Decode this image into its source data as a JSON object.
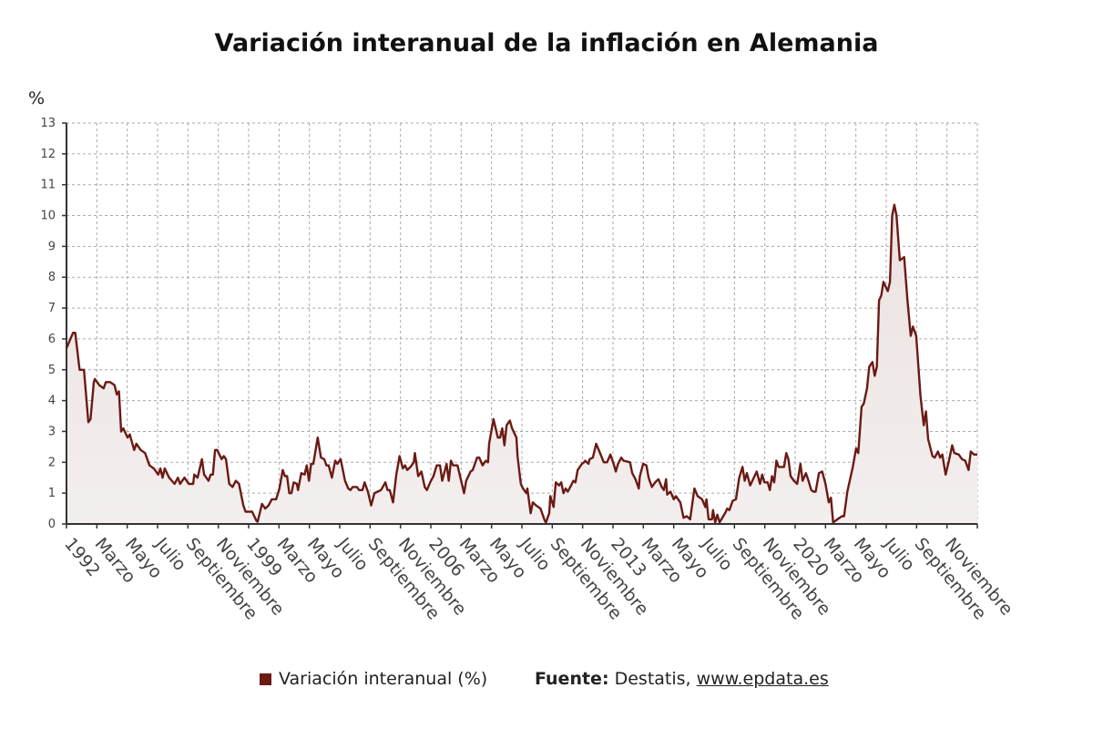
{
  "chart_data": {
    "type": "area",
    "title": "Variación interanual de la inflación en Alemania",
    "ylabel": "%",
    "xlabel": "",
    "ylim": [
      0,
      13
    ],
    "yticks": [
      0,
      1,
      2,
      3,
      4,
      5,
      6,
      7,
      8,
      9,
      10,
      11,
      12,
      13
    ],
    "xlim": [
      0,
      417
    ],
    "x_unit": "months since January 1992 (approximate)",
    "grid": true,
    "legend_position": "bottom",
    "xtick_labels": [
      "1992",
      "Marzo",
      "Mayo",
      "Julio",
      "Septiembre",
      "Noviembre",
      "1999",
      "Marzo",
      "Mayo",
      "Julio",
      "Septiembre",
      "Noviembre",
      "2006",
      "Marzo",
      "Mayo",
      "Julio",
      "Septiembre",
      "Noviembre",
      "2013",
      "Marzo",
      "Mayo",
      "Julio",
      "Septiembre",
      "Noviembre",
      "2020",
      "Marzo",
      "Mayo",
      "Julio",
      "Septiembre",
      "Noviembre"
    ],
    "series": [
      {
        "name": "Variación interanual (%)",
        "color": "#6b1a14",
        "fill": "#efe9e7",
        "points": [
          [
            0,
            5.7
          ],
          [
            3,
            6.2
          ],
          [
            4,
            6.2
          ],
          [
            6,
            5.0
          ],
          [
            8,
            5.0
          ],
          [
            10,
            3.3
          ],
          [
            11,
            3.4
          ],
          [
            12.5,
            4.6
          ],
          [
            13,
            4.7
          ],
          [
            15,
            4.5
          ],
          [
            17,
            4.4
          ],
          [
            18,
            4.6
          ],
          [
            20,
            4.6
          ],
          [
            22,
            4.5
          ],
          [
            23,
            4.2
          ],
          [
            24,
            4.3
          ],
          [
            25,
            3.0
          ],
          [
            26,
            3.1
          ],
          [
            28,
            2.8
          ],
          [
            29,
            2.9
          ],
          [
            31,
            2.4
          ],
          [
            32,
            2.6
          ],
          [
            34,
            2.4
          ],
          [
            36,
            2.3
          ],
          [
            38,
            1.9
          ],
          [
            40,
            1.8
          ],
          [
            42,
            1.6
          ],
          [
            43,
            1.8
          ],
          [
            44,
            1.5
          ],
          [
            45,
            1.8
          ],
          [
            47,
            1.5
          ],
          [
            49.5,
            1.3
          ],
          [
            51,
            1.5
          ],
          [
            52,
            1.3
          ],
          [
            54,
            1.5
          ],
          [
            56,
            1.3
          ],
          [
            58,
            1.3
          ],
          [
            58.5,
            1.6
          ],
          [
            60,
            1.5
          ],
          [
            62,
            2.1
          ],
          [
            63,
            1.6
          ],
          [
            65,
            1.4
          ],
          [
            66,
            1.6
          ],
          [
            67,
            1.6
          ],
          [
            68,
            2.4
          ],
          [
            69,
            2.4
          ],
          [
            71,
            2.1
          ],
          [
            72,
            2.2
          ],
          [
            73,
            2.1
          ],
          [
            74.5,
            1.3
          ],
          [
            76,
            1.2
          ],
          [
            77.5,
            1.4
          ],
          [
            79,
            1.3
          ],
          [
            81,
            0.6
          ],
          [
            82,
            0.4
          ],
          [
            85,
            0.4
          ],
          [
            87,
            0.1
          ],
          [
            87.5,
            0.07
          ],
          [
            89.5,
            0.65
          ],
          [
            91,
            0.5
          ],
          [
            92.5,
            0.6
          ],
          [
            94,
            0.8
          ],
          [
            96,
            0.8
          ],
          [
            97.5,
            1.15
          ],
          [
            99,
            1.75
          ],
          [
            100,
            1.55
          ],
          [
            101,
            1.55
          ],
          [
            102,
            1.0
          ],
          [
            103,
            1.0
          ],
          [
            104,
            1.35
          ],
          [
            105.5,
            1.3
          ],
          [
            106,
            1.1
          ],
          [
            107.5,
            1.65
          ],
          [
            109,
            1.6
          ],
          [
            110,
            1.9
          ],
          [
            111,
            1.4
          ],
          [
            112,
            1.95
          ],
          [
            113,
            1.95
          ],
          [
            115,
            2.8
          ],
          [
            116.5,
            2.15
          ],
          [
            118,
            2.1
          ],
          [
            119,
            1.9
          ],
          [
            120,
            1.9
          ],
          [
            121.5,
            1.5
          ],
          [
            123,
            2.05
          ],
          [
            124,
            1.95
          ],
          [
            125.5,
            2.1
          ],
          [
            127.5,
            1.4
          ],
          [
            129,
            1.15
          ],
          [
            130,
            1.1
          ],
          [
            131,
            1.2
          ],
          [
            133,
            1.2
          ],
          [
            134,
            1.1
          ],
          [
            135.5,
            1.1
          ],
          [
            136.5,
            1.35
          ],
          [
            138,
            1.05
          ],
          [
            139.5,
            0.6
          ],
          [
            141,
            1.0
          ],
          [
            142.5,
            1.05
          ],
          [
            144,
            1.1
          ],
          [
            146,
            1.35
          ],
          [
            147,
            1.1
          ],
          [
            148,
            1.1
          ],
          [
            149.5,
            0.7
          ],
          [
            151,
            1.6
          ],
          [
            152.5,
            2.2
          ],
          [
            154,
            1.8
          ],
          [
            155,
            1.9
          ],
          [
            156,
            1.75
          ],
          [
            157.5,
            1.85
          ],
          [
            159,
            2.0
          ],
          [
            159.5,
            2.3
          ],
          [
            161,
            1.55
          ],
          [
            162.5,
            1.7
          ],
          [
            164,
            1.2
          ],
          [
            165,
            1.1
          ],
          [
            166.5,
            1.35
          ],
          [
            168,
            1.55
          ],
          [
            169.5,
            1.9
          ],
          [
            171,
            1.9
          ],
          [
            172,
            1.4
          ],
          [
            174,
            1.95
          ],
          [
            175,
            1.4
          ],
          [
            176,
            2.05
          ],
          [
            177,
            1.9
          ],
          [
            179,
            1.9
          ],
          [
            182,
            1.0
          ],
          [
            183,
            1.4
          ],
          [
            185,
            1.7
          ],
          [
            186,
            1.75
          ],
          [
            188,
            2.15
          ],
          [
            189,
            2.15
          ],
          [
            190.5,
            1.9
          ],
          [
            192,
            2.05
          ],
          [
            193,
            2.0
          ],
          [
            193.5,
            2.6
          ],
          [
            195.5,
            3.4
          ],
          [
            197.5,
            2.8
          ],
          [
            198.5,
            2.8
          ],
          [
            199.5,
            3.1
          ],
          [
            200.5,
            2.55
          ],
          [
            201.5,
            3.2
          ],
          [
            203,
            3.35
          ],
          [
            204,
            3.1
          ],
          [
            206,
            2.8
          ],
          [
            206.5,
            2.2
          ],
          [
            208,
            1.3
          ],
          [
            209,
            1.15
          ],
          [
            210.5,
            1.0
          ],
          [
            211,
            1.15
          ],
          [
            212.5,
            0.35
          ],
          [
            213.5,
            0.7
          ],
          [
            215,
            0.6
          ],
          [
            217,
            0.5
          ],
          [
            219,
            0.1
          ],
          [
            219.5,
            0.05
          ],
          [
            221,
            0.35
          ],
          [
            221.5,
            0.9
          ],
          [
            223,
            0.55
          ],
          [
            224,
            1.35
          ],
          [
            225.5,
            1.25
          ],
          [
            226.5,
            1.35
          ],
          [
            227.5,
            1.0
          ],
          [
            228.5,
            1.15
          ],
          [
            229.5,
            1.05
          ],
          [
            231,
            1.25
          ],
          [
            232,
            1.4
          ],
          [
            233,
            1.35
          ],
          [
            234,
            1.75
          ],
          [
            236,
            1.95
          ],
          [
            237,
            2.0
          ],
          [
            237.5,
            2.05
          ],
          [
            239,
            1.95
          ],
          [
            239.5,
            2.1
          ],
          [
            241,
            2.15
          ],
          [
            242.5,
            2.6
          ],
          [
            244,
            2.35
          ],
          [
            246,
            2.0
          ],
          [
            247.5,
            2.0
          ],
          [
            249,
            2.25
          ],
          [
            250.5,
            1.95
          ],
          [
            251.5,
            1.7
          ],
          [
            252.5,
            1.95
          ],
          [
            254,
            2.15
          ],
          [
            255,
            2.05
          ],
          [
            258,
            2.0
          ],
          [
            259,
            1.65
          ],
          [
            260.5,
            1.45
          ],
          [
            262,
            1.15
          ],
          [
            262.5,
            1.55
          ],
          [
            264,
            1.95
          ],
          [
            265.5,
            1.9
          ],
          [
            266.5,
            1.5
          ],
          [
            268,
            1.2
          ],
          [
            269.5,
            1.35
          ],
          [
            271,
            1.45
          ],
          [
            272.5,
            1.2
          ],
          [
            273.5,
            1.1
          ],
          [
            274.5,
            1.45
          ],
          [
            275,
            0.95
          ],
          [
            276.5,
            1.05
          ],
          [
            278,
            0.8
          ],
          [
            279,
            0.9
          ],
          [
            281,
            0.7
          ],
          [
            282.5,
            0.2
          ],
          [
            284,
            0.25
          ],
          [
            285.5,
            0.15
          ],
          [
            287.5,
            1.15
          ],
          [
            289,
            0.9
          ],
          [
            291,
            0.8
          ],
          [
            292.5,
            0.55
          ],
          [
            293,
            0.8
          ],
          [
            294,
            0.15
          ],
          [
            295.5,
            0.15
          ],
          [
            296,
            0.45
          ],
          [
            297,
            0.05
          ],
          [
            298,
            0.3
          ],
          [
            299,
            0.05
          ],
          [
            301.5,
            0.35
          ],
          [
            302.5,
            0.5
          ],
          [
            303.5,
            0.45
          ],
          [
            305,
            0.75
          ],
          [
            306.5,
            0.8
          ],
          [
            308,
            1.5
          ],
          [
            309.5,
            1.85
          ],
          [
            310.5,
            1.4
          ],
          [
            311.5,
            1.65
          ],
          [
            313,
            1.25
          ],
          [
            314,
            1.4
          ],
          [
            316,
            1.7
          ],
          [
            317.5,
            1.3
          ],
          [
            318.5,
            1.6
          ],
          [
            319.5,
            1.35
          ],
          [
            321,
            1.35
          ],
          [
            322,
            1.1
          ],
          [
            323,
            1.55
          ],
          [
            324,
            1.35
          ],
          [
            325,
            2.05
          ],
          [
            326,
            1.85
          ],
          [
            328.5,
            1.85
          ],
          [
            329.5,
            2.3
          ],
          [
            330.5,
            2.1
          ],
          [
            331.5,
            1.55
          ],
          [
            333,
            1.4
          ],
          [
            334.5,
            1.3
          ],
          [
            336,
            1.95
          ],
          [
            337,
            1.4
          ],
          [
            338.5,
            1.65
          ],
          [
            339.5,
            1.45
          ],
          [
            341,
            1.1
          ],
          [
            342,
            1.05
          ],
          [
            343,
            1.05
          ],
          [
            344.5,
            1.65
          ],
          [
            346,
            1.7
          ],
          [
            347.5,
            1.3
          ],
          [
            349,
            0.7
          ],
          [
            350,
            0.85
          ],
          [
            351,
            0.05
          ],
          [
            353,
            0.15
          ],
          [
            355,
            0.25
          ],
          [
            356,
            0.25
          ],
          [
            357.5,
            1.05
          ],
          [
            360,
            1.85
          ],
          [
            361.5,
            2.45
          ],
          [
            362.5,
            2.3
          ],
          [
            364,
            3.8
          ],
          [
            365,
            3.9
          ],
          [
            366.5,
            4.4
          ],
          [
            367.5,
            5.1
          ],
          [
            369,
            5.25
          ],
          [
            370,
            4.8
          ],
          [
            371,
            5.1
          ],
          [
            372,
            7.25
          ],
          [
            373,
            7.4
          ],
          [
            374,
            7.85
          ],
          [
            376,
            7.55
          ],
          [
            377,
            7.85
          ],
          [
            378,
            10.0
          ],
          [
            379,
            10.35
          ],
          [
            380,
            10.0
          ],
          [
            381.5,
            8.55
          ],
          [
            383.5,
            8.65
          ],
          [
            385,
            7.25
          ],
          [
            386.5,
            6.1
          ],
          [
            387.5,
            6.4
          ],
          [
            389,
            6.1
          ],
          [
            391,
            4.15
          ],
          [
            392.5,
            3.2
          ],
          [
            393.5,
            3.65
          ],
          [
            394.5,
            2.75
          ],
          [
            396.5,
            2.2
          ],
          [
            397.5,
            2.15
          ],
          [
            399,
            2.35
          ],
          [
            400,
            2.15
          ],
          [
            401,
            2.25
          ],
          [
            402.5,
            1.6
          ],
          [
            404,
            2.05
          ],
          [
            405.5,
            2.55
          ],
          [
            406.5,
            2.3
          ],
          [
            408.5,
            2.25
          ],
          [
            410,
            2.1
          ],
          [
            411.5,
            2.05
          ],
          [
            413,
            1.75
          ],
          [
            414,
            2.35
          ],
          [
            415.5,
            2.25
          ],
          [
            417,
            2.25
          ]
        ]
      }
    ]
  },
  "legend": {
    "label": "Variación interanual (%)"
  },
  "source": {
    "label": "Fuente:",
    "text": "Destatis, ",
    "link": "www.epdata.es"
  }
}
